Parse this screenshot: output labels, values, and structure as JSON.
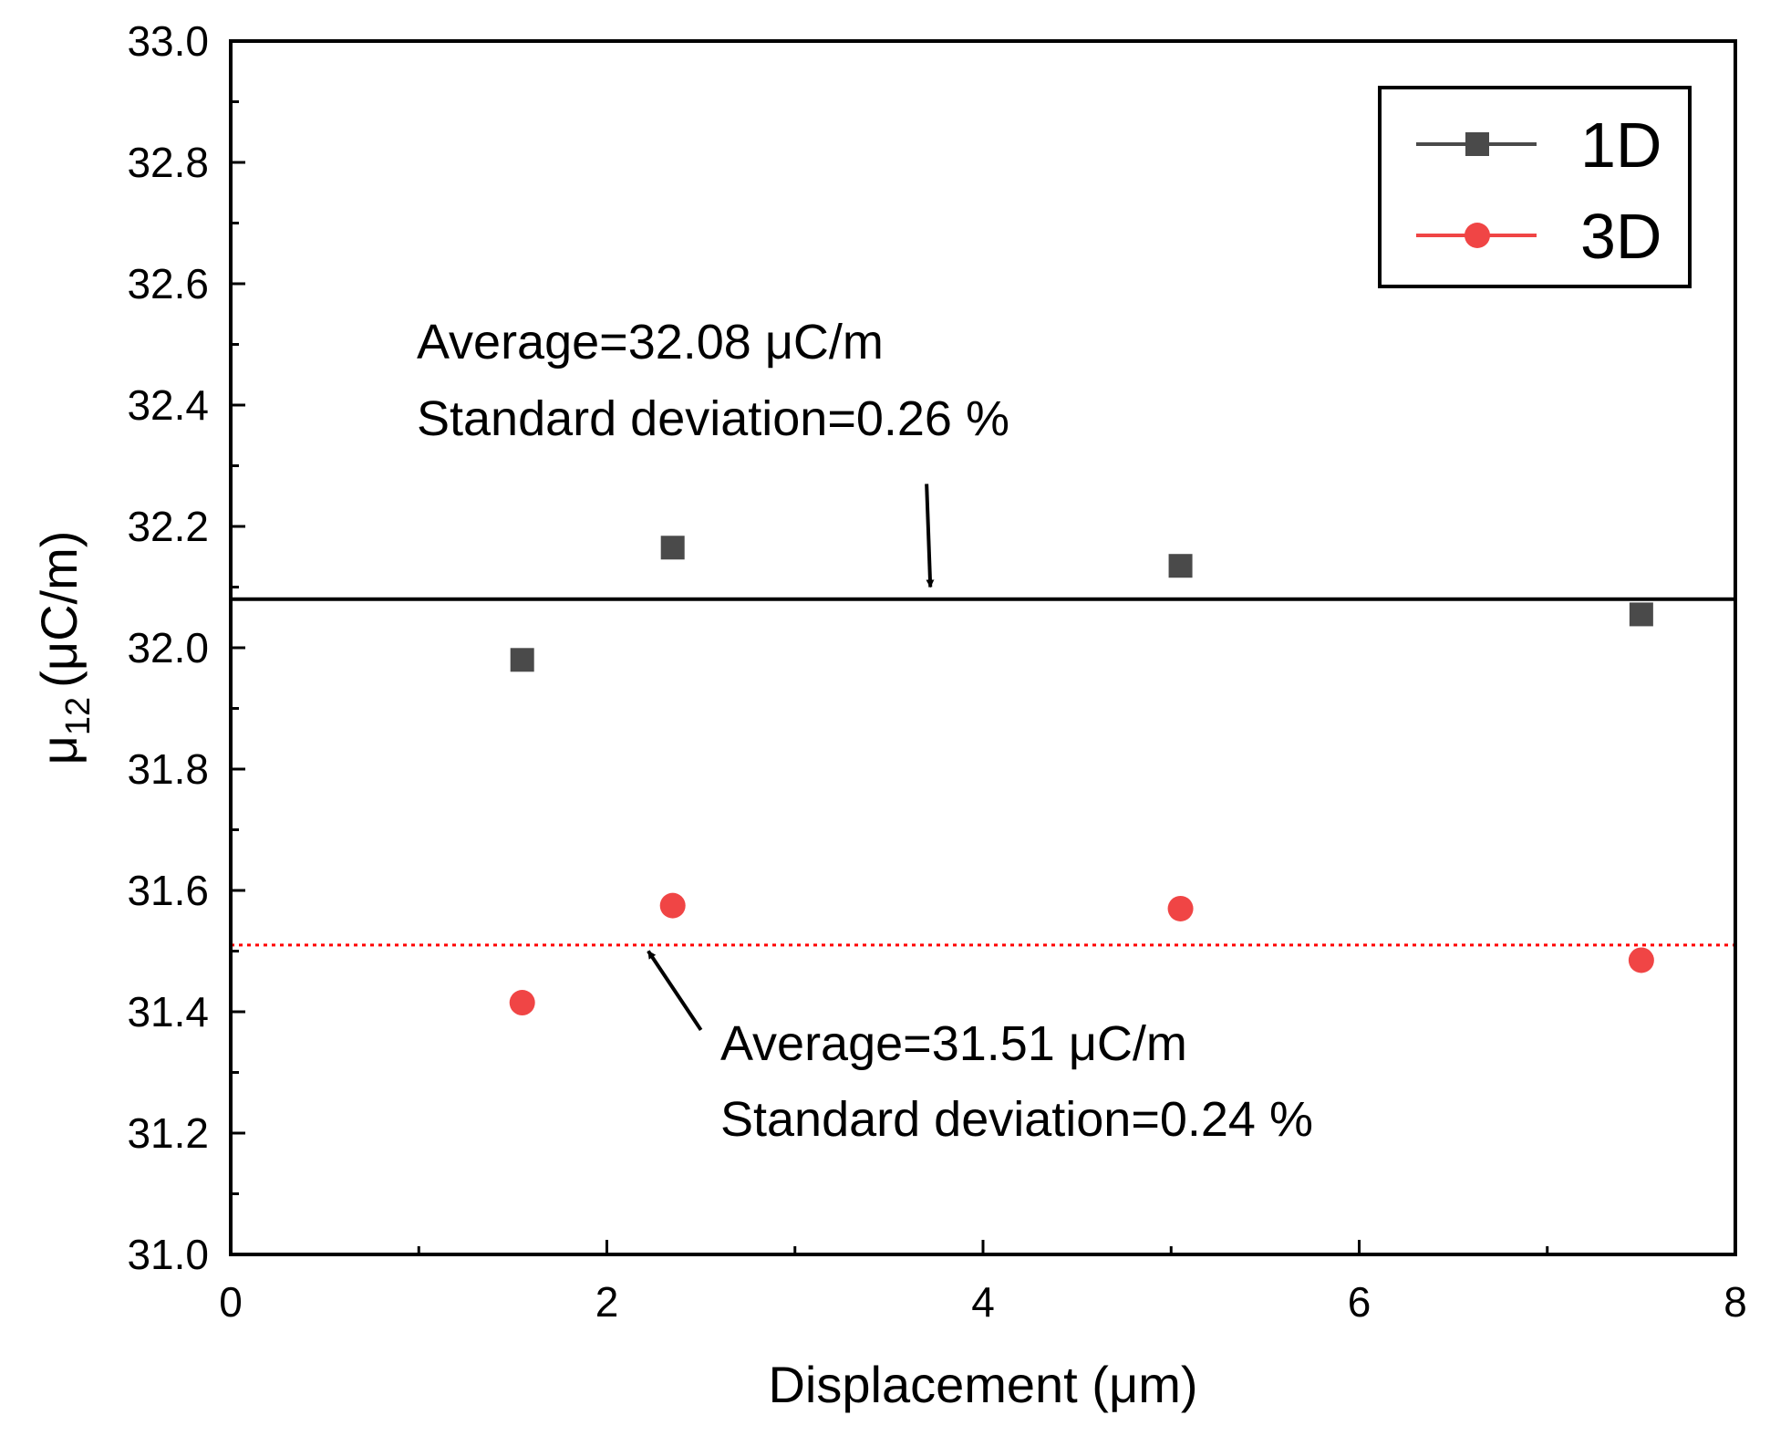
{
  "chart_data": {
    "type": "scatter",
    "xlabel": "Displacement (μm)",
    "ylabel": {
      "base": "μ",
      "subscript": "12",
      "unit": "(μC/m)"
    },
    "xlim": [
      0,
      8
    ],
    "ylim": [
      31.0,
      33.0
    ],
    "x_ticks": [
      "0",
      "2",
      "4",
      "6",
      "8"
    ],
    "y_ticks": [
      "31.0",
      "31.2",
      "31.4",
      "31.6",
      "31.8",
      "32.0",
      "32.2",
      "32.4",
      "32.6",
      "32.8",
      "33.0"
    ],
    "legend_position": "top-right",
    "series": [
      {
        "name": "1D",
        "marker": "square",
        "color": "#4a4a4a",
        "x": [
          1.55,
          2.35,
          5.05,
          7.5
        ],
        "y": [
          31.98,
          32.165,
          32.135,
          32.055
        ]
      },
      {
        "name": "3D",
        "marker": "circle",
        "color": "#f04545",
        "x": [
          1.55,
          2.35,
          5.05,
          7.5
        ],
        "y": [
          31.415,
          31.575,
          31.57,
          31.485
        ]
      }
    ],
    "reference_lines": [
      {
        "series": "1D",
        "y": 32.08,
        "style": "solid",
        "color": "#000000"
      },
      {
        "series": "3D",
        "y": 31.51,
        "style": "dotted",
        "color": "#ff0000"
      }
    ],
    "annotations": [
      {
        "series": "1D",
        "line1": "Average=32.08 μC/m",
        "line2": "Standard deviation=0.26 %",
        "arrow_from": [
          3.7,
          32.27
        ],
        "arrow_to": [
          3.72,
          32.1
        ]
      },
      {
        "series": "3D",
        "line1": "Average=31.51 μC/m",
        "line2": "Standard deviation=0.24 %",
        "arrow_from": [
          2.5,
          31.37
        ],
        "arrow_to": [
          2.22,
          31.5
        ]
      }
    ]
  }
}
